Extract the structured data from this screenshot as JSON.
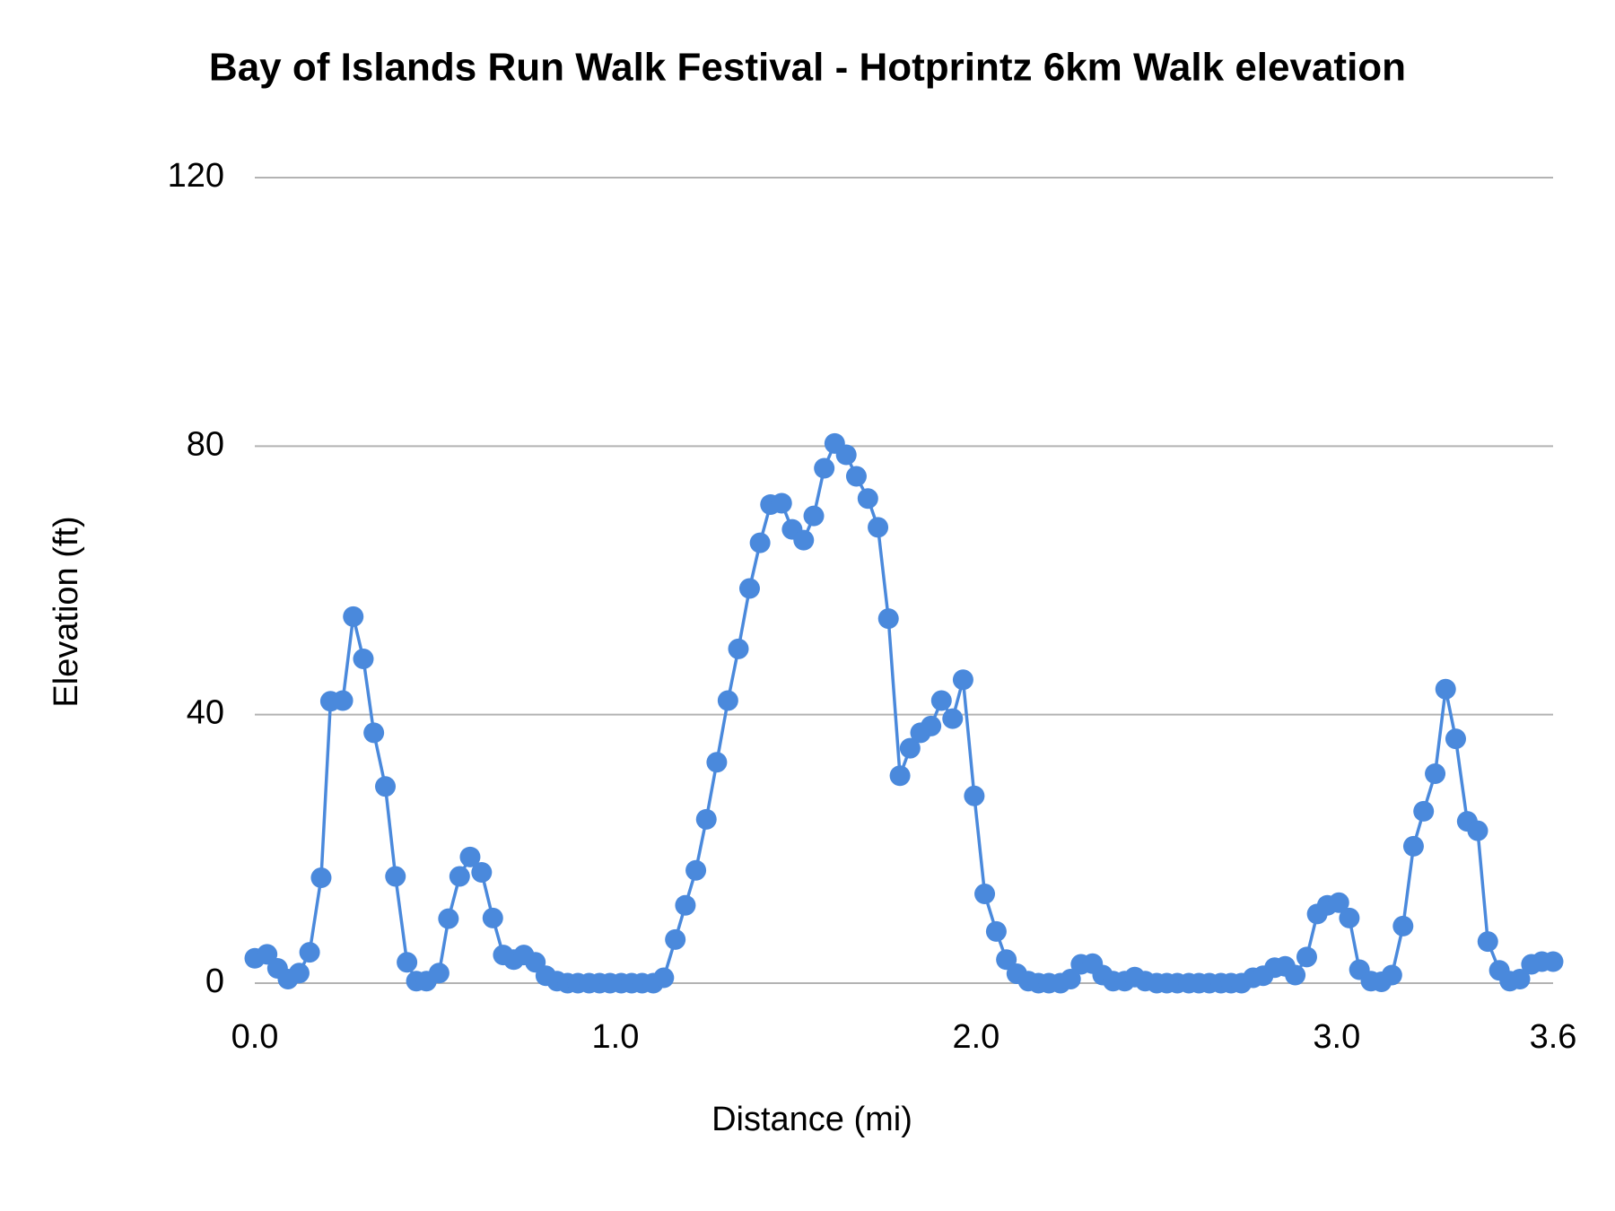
{
  "chart_data": {
    "type": "line",
    "title": "Bay of Islands Run Walk Festival - Hotprintz 6km Walk elevation",
    "x_label": "Distance (mi)",
    "y_label": "Elevation (ft)",
    "x": [
      0,
      0.034,
      0.063,
      0.092,
      0.123,
      0.152,
      0.184,
      0.21,
      0.244,
      0.273,
      0.301,
      0.33,
      0.362,
      0.39,
      0.422,
      0.448,
      0.476,
      0.511,
      0.537,
      0.568,
      0.597,
      0.629,
      0.66,
      0.689,
      0.718,
      0.746,
      0.778,
      0.807,
      0.838,
      0.867,
      0.896,
      0.927,
      0.956,
      0.985,
      1.016,
      1.045,
      1.074,
      1.105,
      1.134,
      1.166,
      1.194,
      1.223,
      1.252,
      1.281,
      1.312,
      1.341,
      1.372,
      1.401,
      1.43,
      1.461,
      1.49,
      1.522,
      1.55,
      1.579,
      1.608,
      1.64,
      1.668,
      1.7,
      1.728,
      1.757,
      1.789,
      1.817,
      1.846,
      1.875,
      1.904,
      1.935,
      1.964,
      1.995,
      2.024,
      2.056,
      2.084,
      2.113,
      2.145,
      2.173,
      2.202,
      2.234,
      2.262,
      2.291,
      2.323,
      2.351,
      2.38,
      2.412,
      2.44,
      2.469,
      2.501,
      2.529,
      2.558,
      2.59,
      2.618,
      2.647,
      2.679,
      2.707,
      2.736,
      2.768,
      2.796,
      2.828,
      2.857,
      2.885,
      2.917,
      2.946,
      2.974,
      3.006,
      3.035,
      3.063,
      3.095,
      3.124,
      3.153,
      3.184,
      3.213,
      3.241,
      3.273,
      3.302,
      3.33,
      3.362,
      3.391,
      3.419,
      3.451,
      3.48,
      3.508,
      3.54,
      3.569,
      3.6
    ],
    "values": [
      3.7,
      4.3,
      2.2,
      0.6,
      1.5,
      4.6,
      15.7,
      42,
      42.1,
      54.6,
      48.3,
      37.3,
      29.3,
      15.9,
      3.1,
      0.3,
      0.3,
      1.5,
      9.6,
      15.9,
      18.8,
      16.5,
      9.7,
      4.2,
      3.5,
      4.2,
      3.1,
      1.1,
      0.3,
      0,
      0,
      0,
      0,
      0,
      0,
      0,
      0,
      0,
      0.8,
      6.5,
      11.6,
      16.8,
      24.4,
      32.9,
      42.1,
      49.8,
      58.8,
      65.6,
      71.3,
      71.5,
      67.6,
      66,
      69.6,
      76.7,
      80.4,
      78.7,
      75.5,
      72.2,
      67.9,
      54.3,
      30.9,
      35,
      37.3,
      38.3,
      42.1,
      39.4,
      45.2,
      27.9,
      13.3,
      7.7,
      3.5,
      1.4,
      0.3,
      0,
      0,
      0,
      0.6,
      2.8,
      2.9,
      1.2,
      0.3,
      0.3,
      0.9,
      0.3,
      0,
      0,
      0,
      0,
      0,
      0,
      0,
      0,
      0,
      0.8,
      1.1,
      2.3,
      2.5,
      1.2,
      3.9,
      10.3,
      11.6,
      12,
      9.7,
      2,
      0.3,
      0.2,
      1.2,
      8.5,
      20.4,
      25.6,
      31.2,
      43.8,
      36.4,
      24.1,
      22.7,
      6.2,
      1.9,
      0.3,
      0.6,
      2.8,
      3.2,
      3.2
    ],
    "color": "#4a89dc",
    "xlim": [
      0,
      3.6
    ],
    "xticks": [
      {
        "value": 0,
        "label": "0.0"
      },
      {
        "value": 1,
        "label": "1.0"
      },
      {
        "value": 2,
        "label": "2.0"
      },
      {
        "value": 3,
        "label": "3.0"
      },
      3.6
    ],
    "ylim": [
      0,
      120
    ],
    "yticks": [
      0,
      40,
      80,
      120
    ],
    "grid": true
  }
}
